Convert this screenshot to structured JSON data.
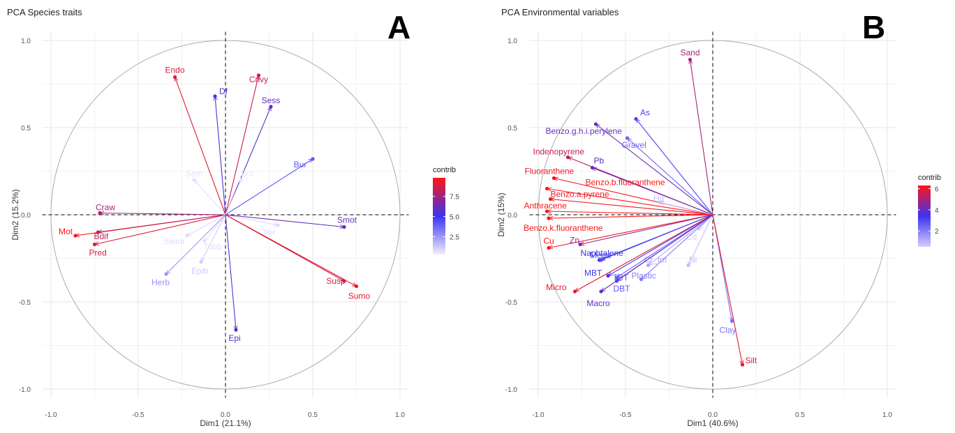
{
  "chart_data": [
    {
      "type": "scatter",
      "subtype": "pca-variable-correlation-circle",
      "title": "PCA Species traits",
      "panel_label": "A",
      "xlabel": "Dim1 (21.1%)",
      "ylabel": "Dim2 (15.2%)",
      "xlim": [
        -1.05,
        1.05
      ],
      "ylim": [
        -1.05,
        1.05
      ],
      "xticks": [
        "-1.0",
        "-0.5",
        "0.0",
        "0.5",
        "1.0"
      ],
      "yticks": [
        "-1.0",
        "-0.5",
        "0.0",
        "0.5",
        "1.0"
      ],
      "grid": true,
      "legend": {
        "title": "contrib",
        "position": "right",
        "ticks": [
          "2.5",
          "5.0",
          "7.5"
        ],
        "min": 0.3,
        "max": 9.8
      },
      "colors": {
        "low": "#f3eeff",
        "mid": "#3b34f0",
        "high": "#ff1414"
      },
      "points": [
        {
          "label": "Endo",
          "x": -0.29,
          "y": 0.79,
          "contrib": 9.0
        },
        {
          "label": "Df",
          "x": -0.06,
          "y": 0.68,
          "contrib": 5.5
        },
        {
          "label": "Cnvy",
          "x": 0.19,
          "y": 0.8,
          "contrib": 8.6
        },
        {
          "label": "Sess",
          "x": 0.26,
          "y": 0.62,
          "contrib": 6.0
        },
        {
          "label": "Bur",
          "x": 0.5,
          "y": 0.32,
          "contrib": 4.2
        },
        {
          "label": "Sem",
          "x": -0.18,
          "y": 0.2,
          "contrib": 0.7
        },
        {
          "label": "Bol",
          "x": 0.09,
          "y": 0.2,
          "contrib": 0.5
        },
        {
          "label": "Craw",
          "x": -0.72,
          "y": 0.01,
          "contrib": 7.6
        },
        {
          "label": "Mot",
          "x": -0.86,
          "y": -0.12,
          "contrib": 9.8
        },
        {
          "label": "Bdif",
          "x": -0.73,
          "y": -0.1,
          "contrib": 8.2
        },
        {
          "label": "Pred",
          "x": -0.75,
          "y": -0.17,
          "contrib": 8.8
        },
        {
          "label": "Swim",
          "x": -0.22,
          "y": -0.12,
          "contrib": 0.8
        },
        {
          "label": "Tubb",
          "x": -0.12,
          "y": -0.15,
          "contrib": 0.7
        },
        {
          "label": "Epib",
          "x": -0.14,
          "y": -0.27,
          "contrib": 1.2
        },
        {
          "label": "Herb",
          "x": -0.34,
          "y": -0.34,
          "contrib": 2.6
        },
        {
          "label": "Iter",
          "x": 0.3,
          "y": -0.06,
          "contrib": 0.9
        },
        {
          "label": "Smot",
          "x": 0.68,
          "y": -0.07,
          "contrib": 6.1
        },
        {
          "label": "Susp",
          "x": 0.68,
          "y": -0.38,
          "contrib": 8.7
        },
        {
          "label": "Sumo",
          "x": 0.75,
          "y": -0.41,
          "contrib": 9.3
        },
        {
          "label": "Epi",
          "x": 0.06,
          "y": -0.66,
          "contrib": 5.7
        }
      ]
    },
    {
      "type": "scatter",
      "subtype": "pca-variable-correlation-circle",
      "title": "PCA Environmental variables",
      "panel_label": "B",
      "xlabel": "Dim1 (40.6%)",
      "ylabel": "Dim2 (15%)",
      "xlim": [
        -1.05,
        1.05
      ],
      "ylim": [
        -1.05,
        1.05
      ],
      "xticks": [
        "-1.0",
        "-0.5",
        "0.0",
        "0.5",
        "1.0"
      ],
      "yticks": [
        "-1.0",
        "-0.5",
        "0.0",
        "0.5",
        "1.0"
      ],
      "grid": true,
      "legend": {
        "title": "contrib",
        "position": "right",
        "ticks": [
          "2",
          "4",
          "6"
        ],
        "min": 0.5,
        "max": 6.3
      },
      "colors": {
        "low": "#d8ccff",
        "mid": "#3b34f0",
        "high": "#ff1414"
      },
      "points": [
        {
          "label": "Sand",
          "x": -0.13,
          "y": 0.89,
          "contrib": 5.0
        },
        {
          "label": "As",
          "x": -0.44,
          "y": 0.55,
          "contrib": 3.1
        },
        {
          "label": "Benzo.g.h.i.perylene",
          "x": -0.67,
          "y": 0.52,
          "contrib": 4.1
        },
        {
          "label": "Gravel",
          "x": -0.49,
          "y": 0.44,
          "contrib": 2.5
        },
        {
          "label": "Indenopyrene",
          "x": -0.83,
          "y": 0.33,
          "contrib": 5.4
        },
        {
          "label": "Pb",
          "x": -0.69,
          "y": 0.27,
          "contrib": 4.0
        },
        {
          "label": "Fluoranthene",
          "x": -0.91,
          "y": 0.21,
          "contrib": 6.1
        },
        {
          "label": "Benzo.b.fluoranthene",
          "x": -0.95,
          "y": 0.15,
          "contrib": 6.3
        },
        {
          "label": "Benzo.a.pyrene",
          "x": -0.93,
          "y": 0.09,
          "contrib": 6.1
        },
        {
          "label": "Hg",
          "x": -0.3,
          "y": 0.07,
          "contrib": 0.8
        },
        {
          "label": "Anthracene",
          "x": -0.95,
          "y": 0.02,
          "contrib": 6.3
        },
        {
          "label": "Benzo.k.fluoranthene",
          "x": -0.94,
          "y": -0.02,
          "contrib": 6.2
        },
        {
          "label": "Cd",
          "x": -0.08,
          "y": -0.08,
          "contrib": 0.5
        },
        {
          "label": "Cu",
          "x": -0.94,
          "y": -0.19,
          "contrib": 6.2
        },
        {
          "label": "Zn",
          "x": -0.76,
          "y": -0.17,
          "contrib": 4.6
        },
        {
          "label": "Naphtalene",
          "x": -0.65,
          "y": -0.26,
          "contrib": 3.4
        },
        {
          "label": "Ni",
          "x": -0.14,
          "y": -0.29,
          "contrib": 0.8
        },
        {
          "label": "Cr_tot",
          "x": -0.37,
          "y": -0.29,
          "contrib": 1.2
        },
        {
          "label": "Mega",
          "x": -0.64,
          "y": -0.26,
          "contrib": 3.0
        },
        {
          "label": "Plastic",
          "x": -0.41,
          "y": -0.37,
          "contrib": 2.0
        },
        {
          "label": "MBT",
          "x": -0.6,
          "y": -0.35,
          "contrib": 3.3
        },
        {
          "label": "TBT",
          "x": -0.55,
          "y": -0.36,
          "contrib": 2.6
        },
        {
          "label": "DBT",
          "x": -0.55,
          "y": -0.38,
          "contrib": 2.8
        },
        {
          "label": "Micro",
          "x": -0.79,
          "y": -0.44,
          "contrib": 5.9
        },
        {
          "label": "Macro",
          "x": -0.64,
          "y": -0.44,
          "contrib": 4.0
        },
        {
          "label": "Clay",
          "x": 0.11,
          "y": -0.61,
          "contrib": 2.2
        },
        {
          "label": "Silt",
          "x": 0.17,
          "y": -0.86,
          "contrib": 5.9
        }
      ]
    }
  ]
}
